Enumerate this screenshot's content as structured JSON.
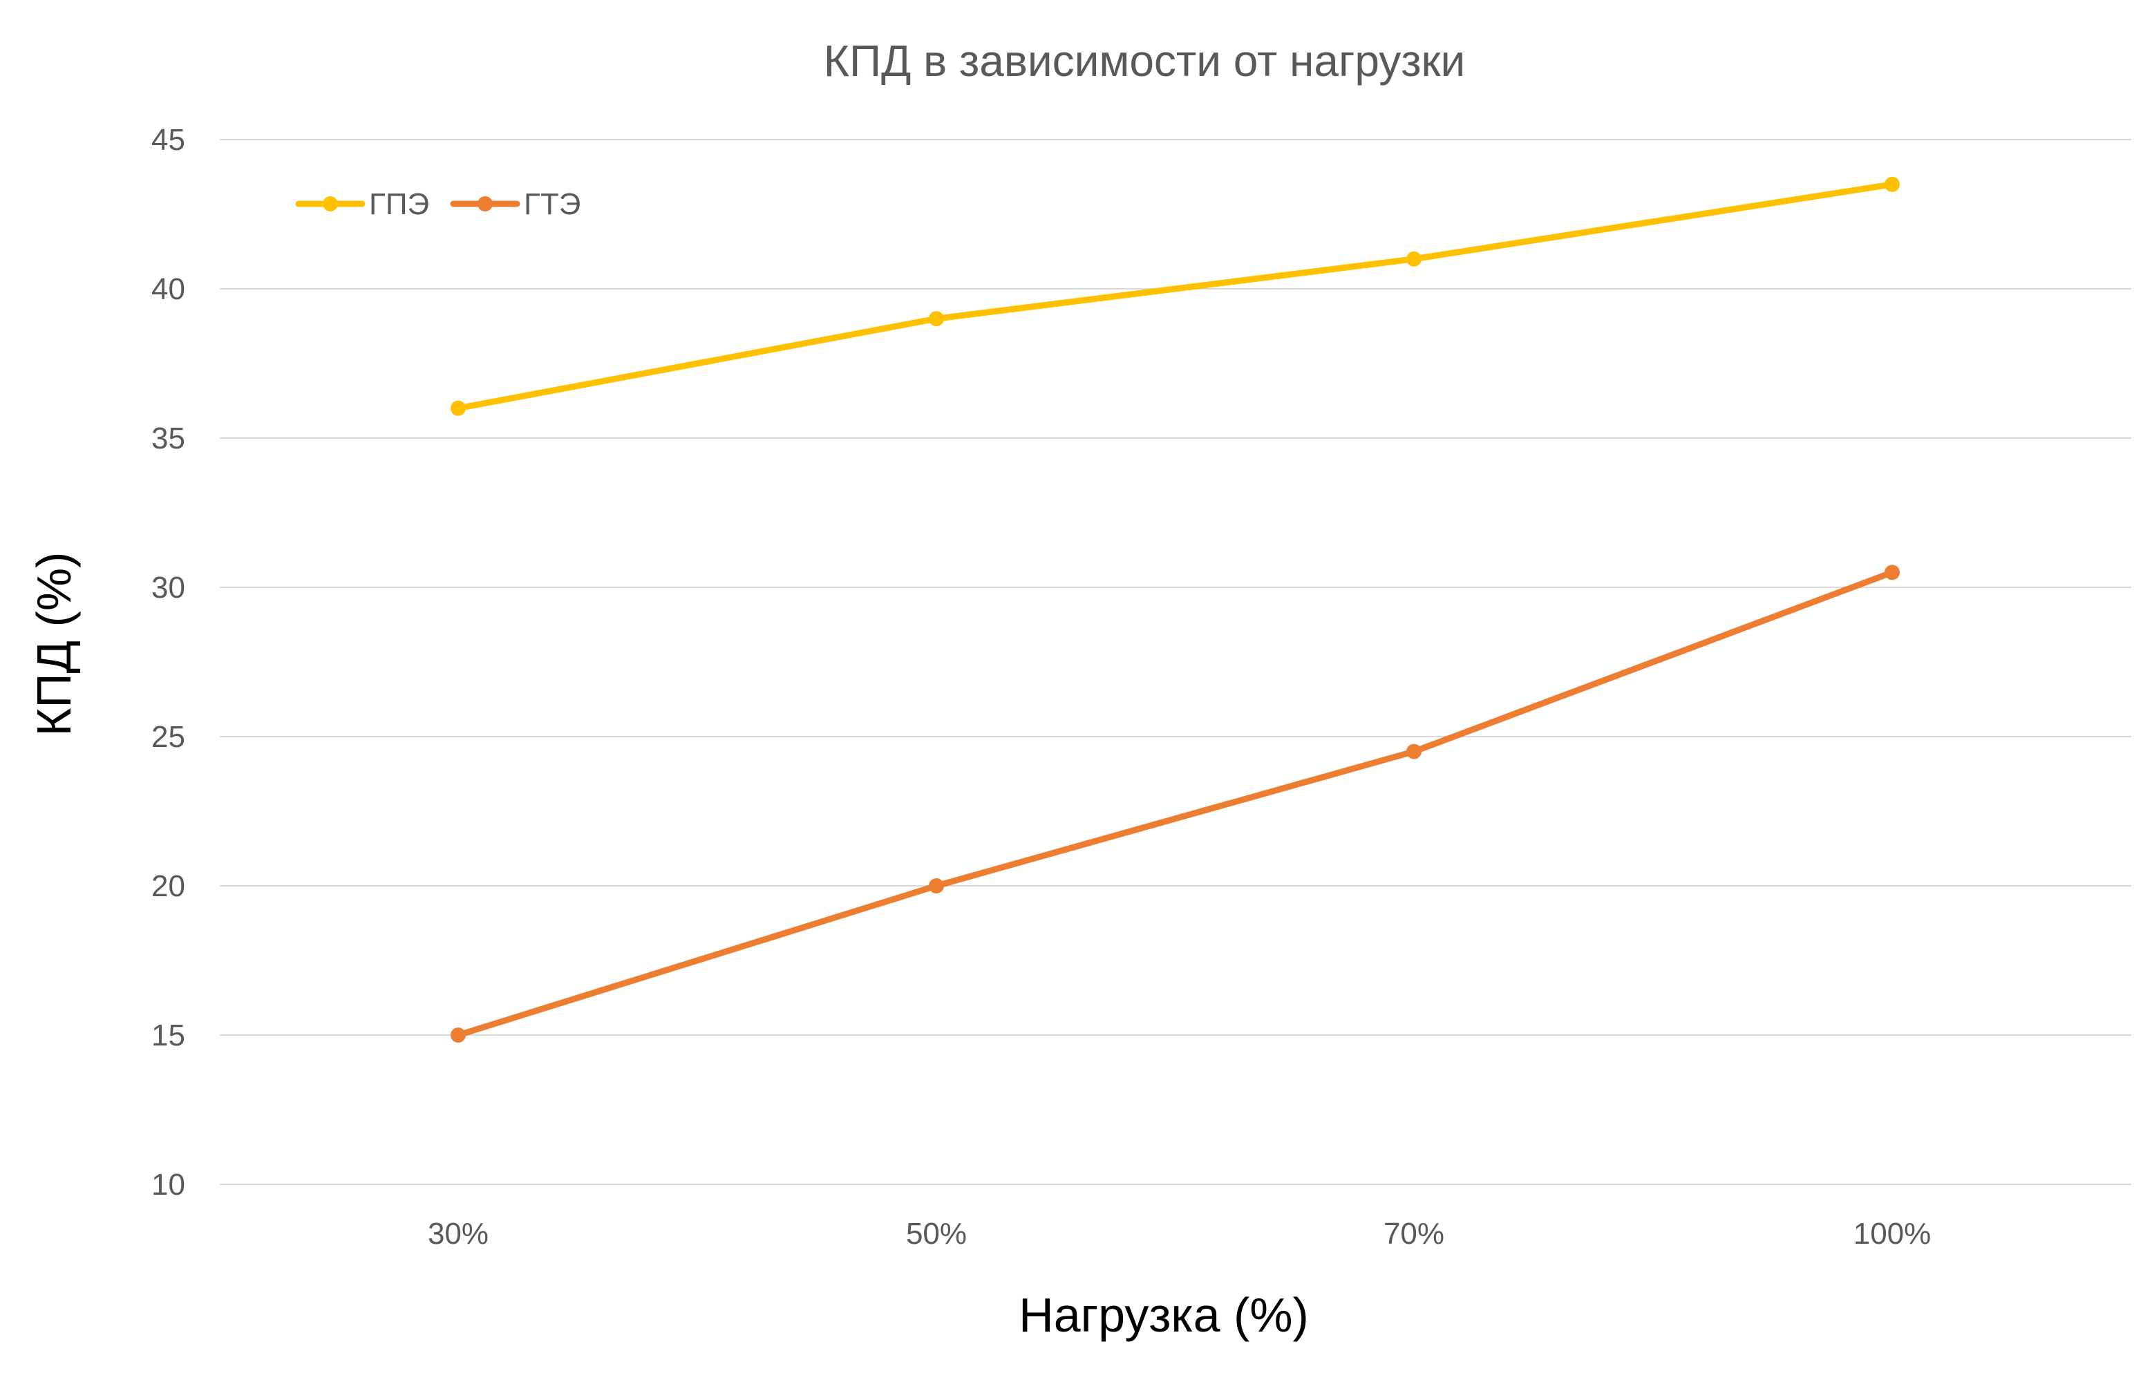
{
  "chart_data": {
    "type": "line",
    "title": "КПД в зависимости от нагрузки",
    "xlabel": "Нагрузка (%)",
    "ylabel": "КПД (%)",
    "categories": [
      "30%",
      "50%",
      "70%",
      "100%"
    ],
    "ylim": [
      10,
      45
    ],
    "yticks": [
      10,
      15,
      20,
      25,
      30,
      35,
      40,
      45
    ],
    "grid": true,
    "legend_position": "top-left",
    "series": [
      {
        "name": "ГПЭ",
        "color": "#FFC000",
        "values": [
          36,
          39,
          41,
          43.5
        ]
      },
      {
        "name": "ГТЭ",
        "color": "#ED7D31",
        "values": [
          15,
          20,
          24.5,
          30.5
        ]
      }
    ]
  }
}
